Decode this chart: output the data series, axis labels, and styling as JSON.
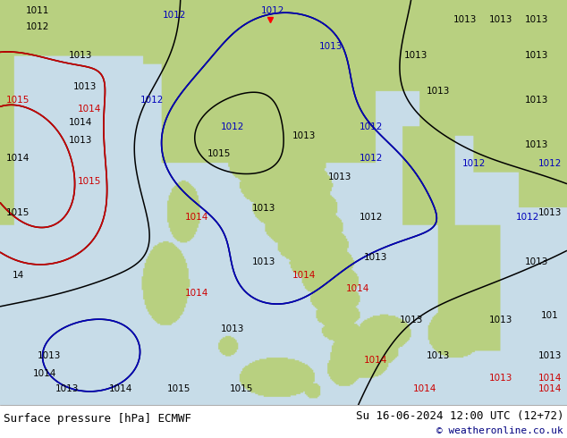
{
  "title_left": "Surface pressure [hPa] ECMWF",
  "title_right": "Su 16-06-2024 12:00 UTC (12+72)",
  "copyright": "© weatheronline.co.uk",
  "sea_color": "#c8dce8",
  "land_color": "#b8d090",
  "land_color2": "#a8c878",
  "contour_color_black": "#000000",
  "contour_color_blue": "#0000bb",
  "contour_color_red": "#cc0000",
  "bottom_bar_color": "#ffffff",
  "bottom_text_color": "#000000",
  "copyright_color": "#000080",
  "figsize": [
    6.34,
    4.9
  ],
  "dpi": 100
}
